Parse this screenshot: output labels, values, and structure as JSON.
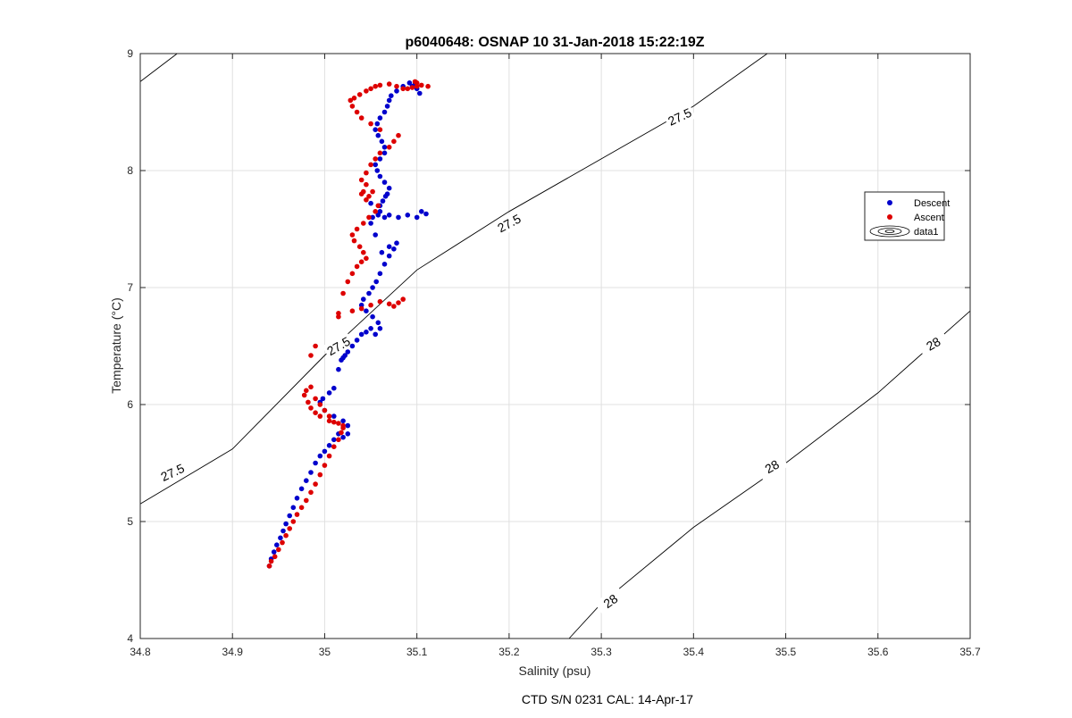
{
  "chart_data": {
    "type": "scatter",
    "title": "p6040648: OSNAP 10 31-Jan-2018 15:22:19Z",
    "xlabel": "Salinity (psu)",
    "ylabel": "Temperature (°C)",
    "footer": "CTD S/N 0231  CAL: 14-Apr-17",
    "xlim": [
      34.8,
      35.7
    ],
    "ylim": [
      4,
      9
    ],
    "xticks": [
      34.8,
      34.9,
      35.0,
      35.1,
      35.2,
      35.3,
      35.4,
      35.5,
      35.6,
      35.7
    ],
    "xtick_labels": [
      "34.8",
      "34.9",
      "35",
      "35.1",
      "35.2",
      "35.3",
      "35.4",
      "35.5",
      "35.6",
      "35.7"
    ],
    "yticks": [
      4,
      5,
      6,
      7,
      8,
      9
    ],
    "ytick_labels": [
      "4",
      "5",
      "6",
      "7",
      "8",
      "9"
    ],
    "grid": true,
    "legend_position": "right",
    "legend": [
      "Descent",
      "Ascent",
      "data1"
    ],
    "colors": {
      "descent": "#0000cc",
      "ascent": "#dd0000",
      "contour": "#000000",
      "grid": "#e0e0e0"
    },
    "contours": [
      {
        "label": "27.5",
        "points": [
          [
            34.8,
            8.76
          ],
          [
            34.84,
            9.0
          ]
        ],
        "labels_at": []
      },
      {
        "label": "27.5",
        "points": [
          [
            34.8,
            5.15
          ],
          [
            34.9,
            5.62
          ],
          [
            35.0,
            6.42
          ],
          [
            35.1,
            7.15
          ],
          [
            35.2,
            7.65
          ],
          [
            35.3,
            8.1
          ],
          [
            35.4,
            8.55
          ],
          [
            35.48,
            9.0
          ]
        ],
        "labels_at": [
          [
            34.835,
            5.42,
            -25
          ],
          [
            35.015,
            6.5,
            -30
          ],
          [
            35.2,
            7.55,
            -28
          ],
          [
            35.385,
            8.46,
            -25
          ]
        ]
      },
      {
        "label": "28",
        "points": [
          [
            35.265,
            4.0
          ],
          [
            35.3,
            4.3
          ],
          [
            35.4,
            4.95
          ],
          [
            35.5,
            5.5
          ],
          [
            35.6,
            6.1
          ],
          [
            35.7,
            6.8
          ]
        ],
        "labels_at": [
          [
            35.31,
            4.32,
            -35
          ],
          [
            35.485,
            5.47,
            -30
          ],
          [
            35.66,
            6.52,
            -30
          ]
        ]
      }
    ],
    "series": [
      {
        "name": "Descent",
        "x": [
          34.94,
          34.942,
          34.945,
          34.948,
          34.952,
          34.955,
          34.958,
          34.962,
          34.966,
          34.97,
          34.975,
          34.98,
          34.985,
          34.99,
          34.995,
          35.0,
          35.005,
          35.01,
          35.015,
          35.02,
          35.025,
          35.025,
          35.02,
          35.01,
          35.0,
          34.995,
          34.998,
          35.005,
          35.01,
          35.015,
          35.018,
          35.02,
          35.022,
          35.025,
          35.03,
          35.035,
          35.04,
          35.045,
          35.05,
          35.055,
          35.06,
          35.058,
          35.052,
          35.045,
          35.04,
          35.042,
          35.048,
          35.052,
          35.056,
          35.06,
          35.065,
          35.07,
          35.075,
          35.078,
          35.07,
          35.062,
          35.055,
          35.05,
          35.052,
          35.058,
          35.06,
          35.065,
          35.07,
          35.08,
          35.09,
          35.1,
          35.105,
          35.11,
          35.05,
          35.06,
          35.063,
          35.066,
          35.068,
          35.07,
          35.065,
          35.06,
          35.057,
          35.055,
          35.06,
          35.065,
          35.065,
          35.062,
          35.058,
          35.055,
          35.057,
          35.06,
          35.065,
          35.068,
          35.07,
          35.072,
          35.078,
          35.085,
          35.092,
          35.098,
          35.1,
          35.103,
          35.095
        ],
        "y": [
          4.62,
          4.68,
          4.74,
          4.8,
          4.86,
          4.92,
          4.98,
          5.05,
          5.12,
          5.2,
          5.28,
          5.35,
          5.42,
          5.5,
          5.56,
          5.6,
          5.65,
          5.7,
          5.75,
          5.72,
          5.75,
          5.82,
          5.86,
          5.9,
          5.95,
          6.02,
          6.05,
          6.1,
          6.14,
          6.3,
          6.38,
          6.4,
          6.42,
          6.45,
          6.5,
          6.55,
          6.6,
          6.62,
          6.65,
          6.6,
          6.65,
          6.7,
          6.75,
          6.8,
          6.85,
          6.9,
          6.95,
          7.0,
          7.05,
          7.12,
          7.2,
          7.27,
          7.33,
          7.38,
          7.35,
          7.3,
          7.45,
          7.55,
          7.6,
          7.62,
          7.65,
          7.6,
          7.62,
          7.6,
          7.62,
          7.6,
          7.65,
          7.63,
          7.72,
          7.7,
          7.74,
          7.78,
          7.8,
          7.85,
          7.9,
          7.95,
          8.0,
          8.05,
          8.1,
          8.15,
          8.2,
          8.25,
          8.3,
          8.35,
          8.4,
          8.45,
          8.5,
          8.55,
          8.6,
          8.64,
          8.68,
          8.72,
          8.75,
          8.74,
          8.7,
          8.66,
          8.72
        ]
      },
      {
        "name": "Ascent",
        "x": [
          34.94,
          34.942,
          34.946,
          34.95,
          34.954,
          34.958,
          34.962,
          34.966,
          34.97,
          34.975,
          34.98,
          34.985,
          34.99,
          34.995,
          35.0,
          35.005,
          35.01,
          35.015,
          35.018,
          35.02,
          35.015,
          35.005,
          34.995,
          34.99,
          34.985,
          34.982,
          34.978,
          34.98,
          34.985,
          34.99,
          34.995,
          35.0,
          35.005,
          35.01,
          35.02,
          34.985,
          34.99,
          35.015,
          35.03,
          35.04,
          35.05,
          35.06,
          35.07,
          35.075,
          35.08,
          35.085,
          35.015,
          35.02,
          35.025,
          35.03,
          35.035,
          35.04,
          35.045,
          35.042,
          35.038,
          35.032,
          35.03,
          35.035,
          35.042,
          35.048,
          35.055,
          35.058,
          35.045,
          35.04,
          35.042,
          35.048,
          35.052,
          35.045,
          35.04,
          35.045,
          35.05,
          35.055,
          35.06,
          35.07,
          35.075,
          35.08,
          35.06,
          35.05,
          35.04,
          35.035,
          35.03,
          35.028,
          35.032,
          35.038,
          35.045,
          35.05,
          35.055,
          35.06,
          35.07,
          35.078,
          35.085,
          35.09,
          35.095,
          35.1,
          35.105,
          35.112,
          35.1,
          35.098
        ],
        "y": [
          4.62,
          4.66,
          4.7,
          4.76,
          4.82,
          4.88,
          4.94,
          5.0,
          5.06,
          5.12,
          5.18,
          5.25,
          5.32,
          5.4,
          5.48,
          5.56,
          5.64,
          5.7,
          5.76,
          5.82,
          5.84,
          5.86,
          5.9,
          5.93,
          5.97,
          6.02,
          6.08,
          6.12,
          6.15,
          6.05,
          6.0,
          5.95,
          5.9,
          5.85,
          5.8,
          6.42,
          6.5,
          6.78,
          6.8,
          6.82,
          6.85,
          6.88,
          6.86,
          6.84,
          6.87,
          6.9,
          6.75,
          6.95,
          7.05,
          7.12,
          7.18,
          7.22,
          7.25,
          7.3,
          7.35,
          7.4,
          7.45,
          7.5,
          7.55,
          7.6,
          7.65,
          7.7,
          7.75,
          7.8,
          7.82,
          7.78,
          7.82,
          7.88,
          7.92,
          7.98,
          8.05,
          8.1,
          8.15,
          8.2,
          8.25,
          8.3,
          8.35,
          8.4,
          8.45,
          8.5,
          8.55,
          8.6,
          8.62,
          8.65,
          8.68,
          8.7,
          8.72,
          8.73,
          8.74,
          8.72,
          8.7,
          8.7,
          8.71,
          8.72,
          8.73,
          8.72,
          8.75,
          8.76
        ]
      }
    ]
  }
}
